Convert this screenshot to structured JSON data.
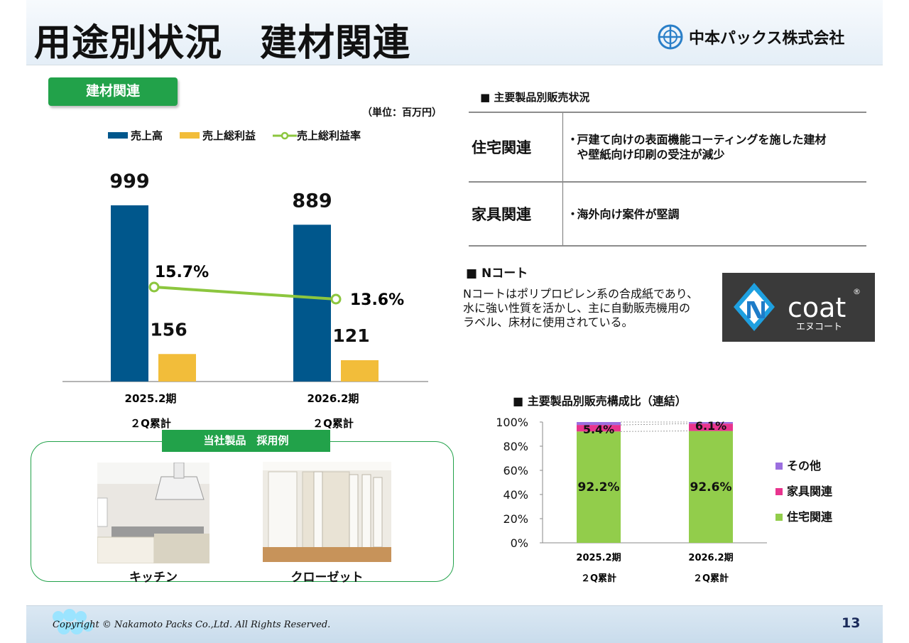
{
  "header": {
    "title": "用途別状況　建材関連",
    "company": "中本パックス株式会社"
  },
  "section_badge": "建材関連",
  "unit_note": "（単位：百万円）",
  "legend": {
    "sales": "売上高",
    "gross_profit": "売上総利益",
    "margin": "売上総利益率"
  },
  "colors": {
    "sales": "#00578c",
    "gross_profit": "#f2bd3a",
    "margin": "#8cc63e",
    "housing": "#92cd4b",
    "furniture": "#e8348e",
    "other": "#9b6fdf",
    "green": "#22a24a"
  },
  "products": {
    "heading": "■ 主要製品別販売状況",
    "rows": [
      {
        "category": "住宅関連",
        "dot": "・",
        "lines": [
          "戸建て向けの表面機能コーティングを施した建材",
          "や壁紙向け印刷の受注が減少"
        ]
      },
      {
        "category": "家具関連",
        "dot": "・",
        "lines": [
          "海外向け案件が堅調"
        ]
      }
    ]
  },
  "ncoat": {
    "heading": "■ Nコート",
    "lines": [
      "Nコートはポリプロピレン系の合成紙であり、",
      "水に強い性質を活かし、主に自動販売機用の",
      "ラベル、床材に使用されている。"
    ],
    "logo_word": "coat",
    "logo_reg": "®",
    "logo_kana": "エヌコート"
  },
  "composition": {
    "heading": "■ 主要製品別販売構成比（連結）"
  },
  "cases": {
    "badge": "当社製品　採用例",
    "items": [
      {
        "caption": "キッチン"
      },
      {
        "caption": "クローゼット"
      }
    ]
  },
  "chart_data": [
    {
      "type": "bar",
      "title": "建材関連",
      "categories": [
        [
          "2025.2期",
          "２Q累計"
        ],
        [
          "2026.2期",
          "２Q累計"
        ]
      ],
      "series": [
        {
          "name": "売上高",
          "values": [
            999,
            889
          ],
          "labels": [
            "999",
            "889"
          ]
        },
        {
          "name": "売上総利益",
          "values": [
            156,
            121
          ],
          "labels": [
            "156",
            "121"
          ]
        }
      ],
      "line_series": {
        "name": "売上総利益率",
        "values": [
          15.7,
          13.6
        ],
        "labels": [
          "15.7%",
          "13.6%"
        ]
      },
      "unit": "百万円"
    },
    {
      "type": "bar",
      "stacked": true,
      "title": "主要製品別販売構成比（連結）",
      "categories": [
        [
          "2025.2期",
          "２Q累計"
        ],
        [
          "2026.2期",
          "２Q累計"
        ]
      ],
      "series": [
        {
          "name": "住宅関連",
          "values": [
            92.2,
            92.6
          ],
          "labels": [
            "92.2%",
            "92.6%"
          ]
        },
        {
          "name": "家具関連",
          "values": [
            5.4,
            6.1
          ],
          "labels": [
            "5.4%",
            "6.1%"
          ]
        },
        {
          "name": "その他",
          "values": [
            2.4,
            1.3
          ]
        }
      ],
      "yticks": [
        "0%",
        "20%",
        "40%",
        "60%",
        "80%",
        "100%"
      ],
      "ylim": [
        0,
        100
      ]
    }
  ],
  "footer": {
    "copyright": "Copyright © Nakamoto Packs Co.,Ltd. All Rights Reserved.",
    "page": "13"
  }
}
